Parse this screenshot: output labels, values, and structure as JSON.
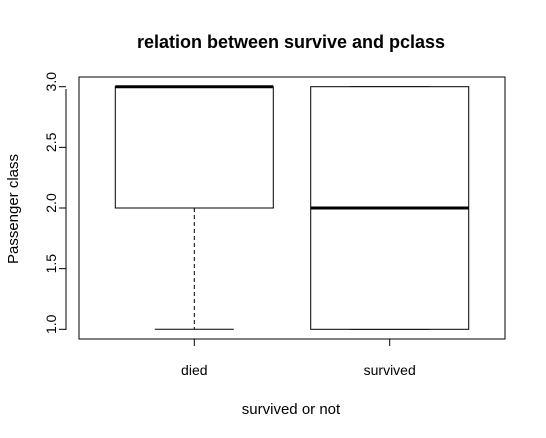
{
  "chart_data": {
    "type": "boxplot",
    "title": "relation between survive and pclass",
    "xlabel": "survived or not",
    "ylabel": "Passenger class",
    "ylim": [
      0.92,
      3.08
    ],
    "yticks": [
      1.0,
      1.5,
      2.0,
      2.5,
      3.0
    ],
    "ytick_labels": [
      "1.0",
      "1.5",
      "2.0",
      "2.5",
      "3.0"
    ],
    "categories": [
      "died",
      "survived"
    ],
    "boxes": [
      {
        "name": "died",
        "whisker_low": 1.0,
        "q1": 2.0,
        "median": 3.0,
        "q3": 3.0,
        "whisker_high": 3.0
      },
      {
        "name": "survived",
        "whisker_low": 1.0,
        "q1": 1.0,
        "median": 2.0,
        "q3": 3.0,
        "whisker_high": 3.0
      }
    ],
    "grid": false,
    "legend": "none"
  }
}
